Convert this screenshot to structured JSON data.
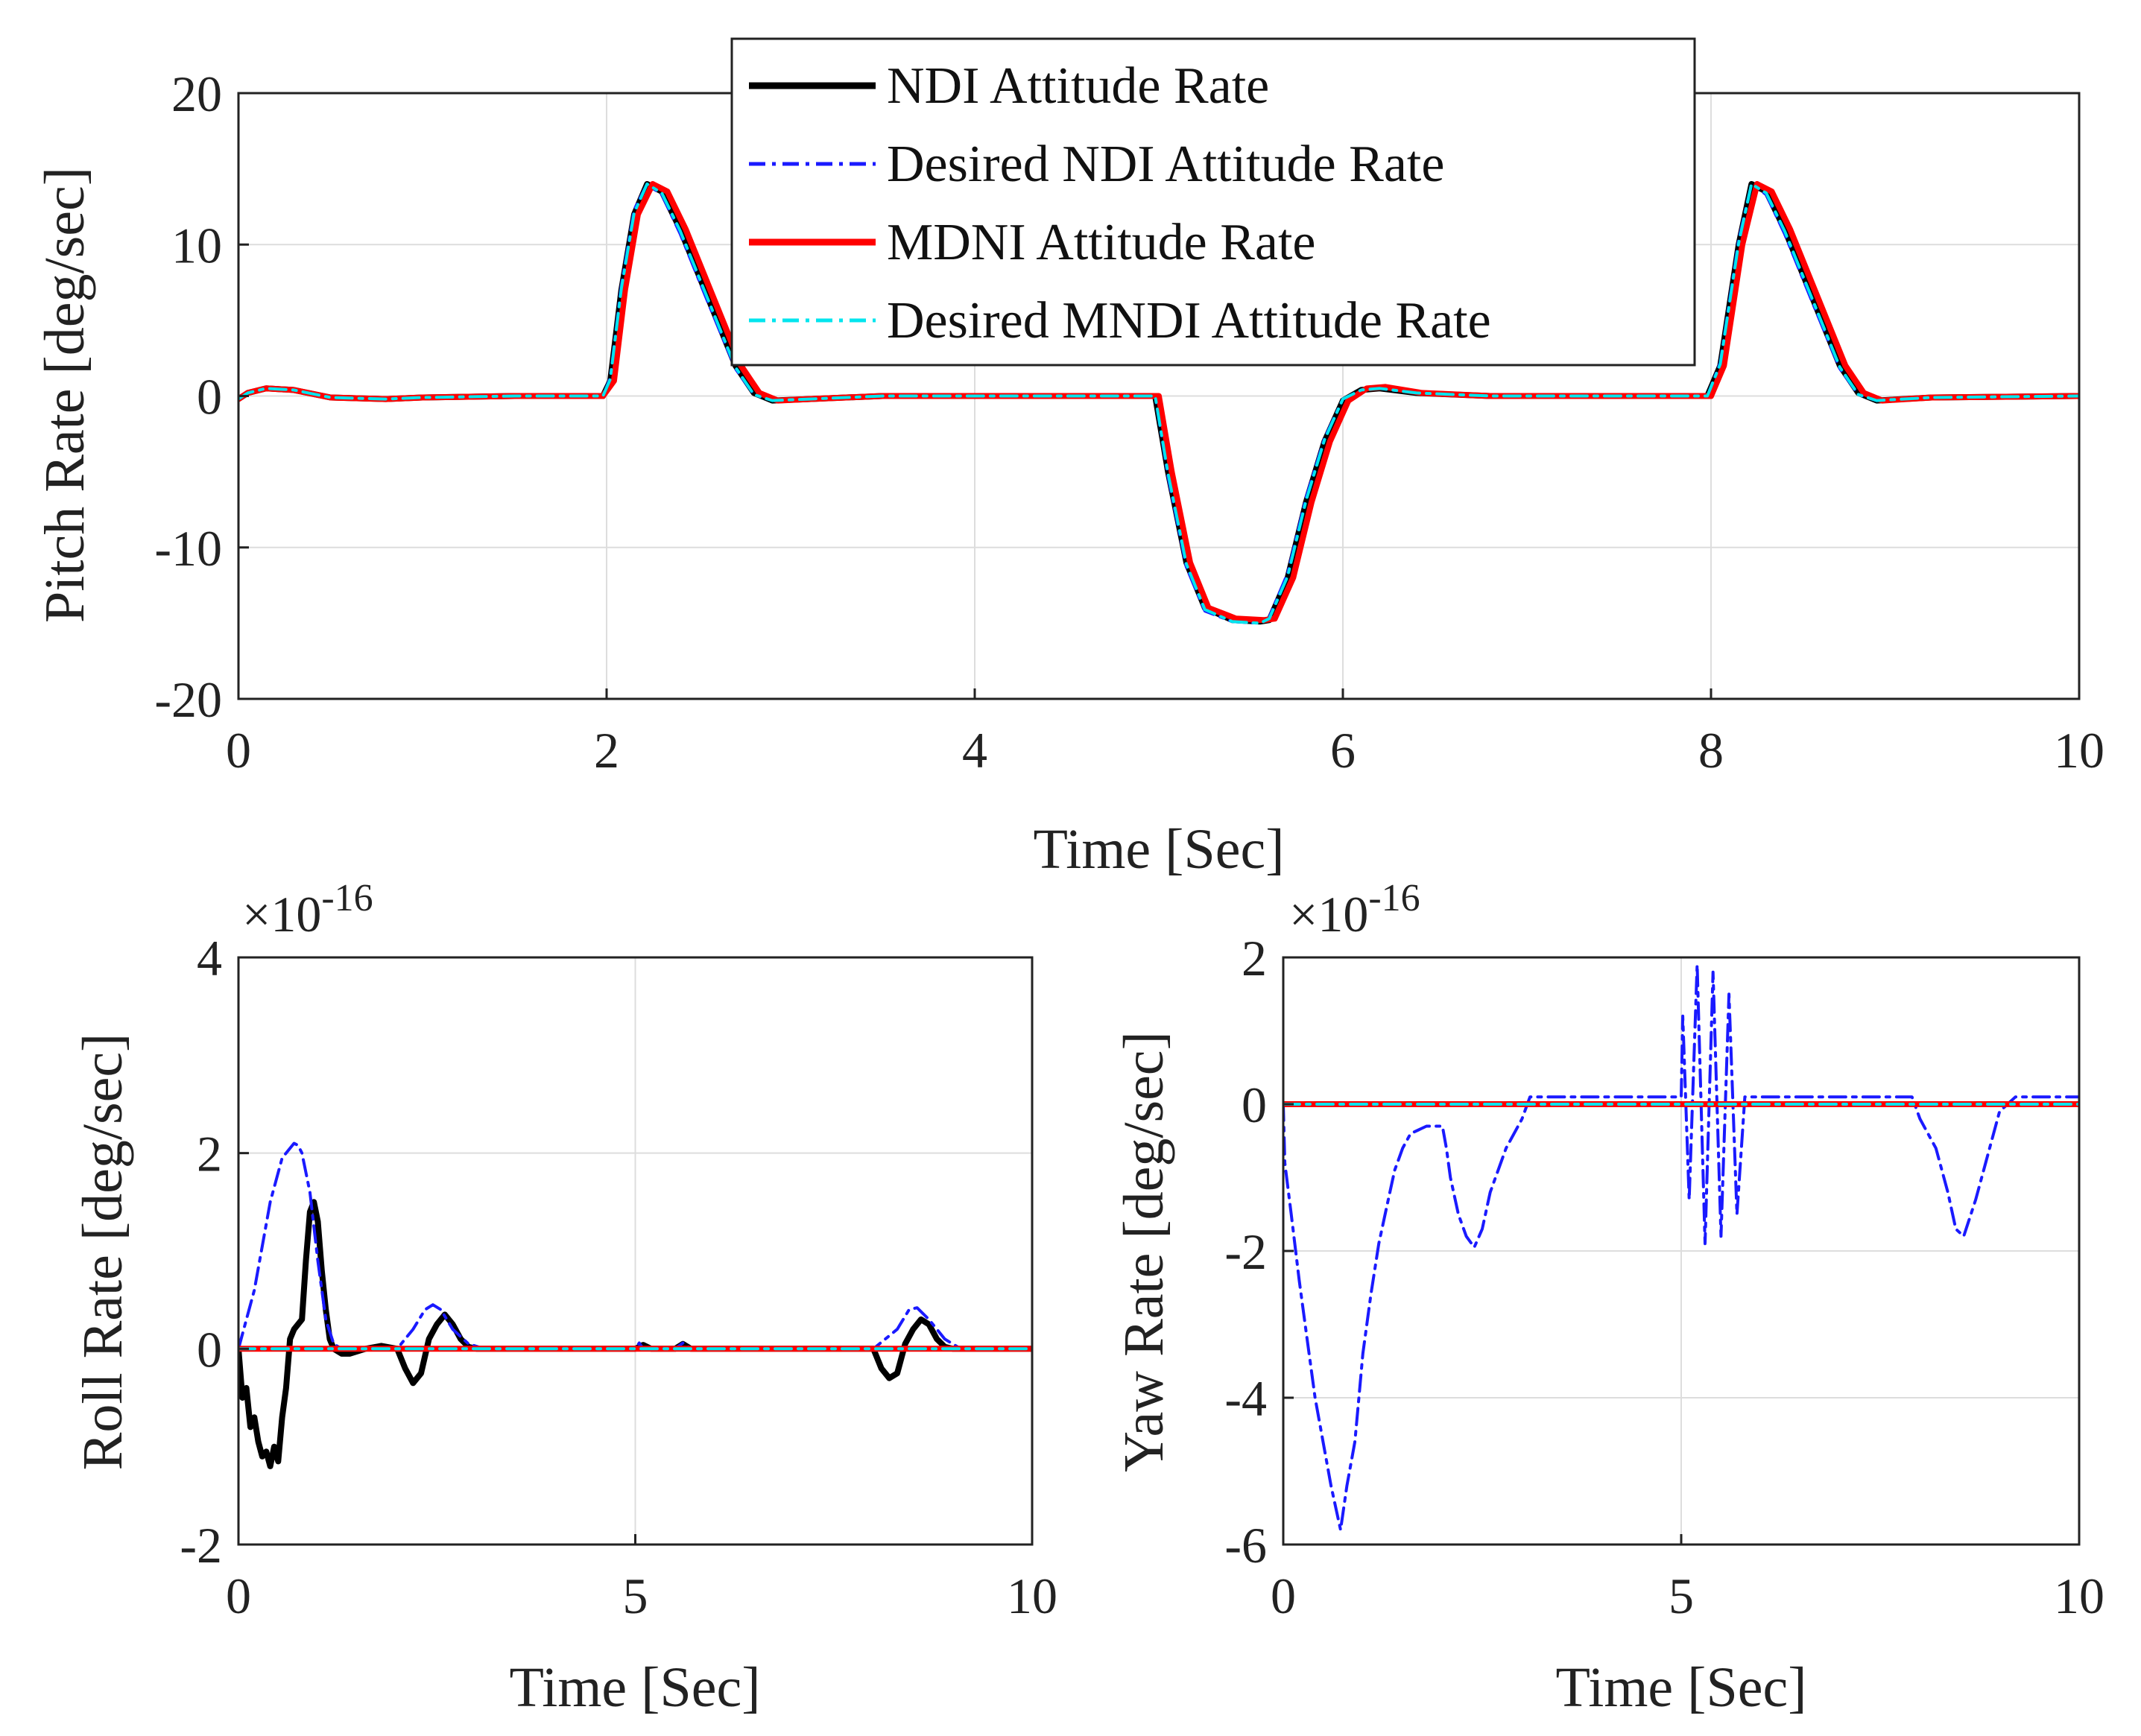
{
  "chart_data": [
    {
      "id": "pitch",
      "type": "line",
      "xlabel": "Time  [Sec]",
      "ylabel": "Pitch Rate [deg/sec]",
      "xlim": [
        0,
        10
      ],
      "ylim": [
        -20,
        20
      ],
      "xticks": [
        0,
        2,
        4,
        6,
        8,
        10
      ],
      "yticks": [
        -20,
        -10,
        0,
        10,
        20
      ],
      "grid": true,
      "legend_position": "top-center",
      "series": [
        {
          "name": "NDI Attitude Rate",
          "color": "#000000",
          "style": "solid",
          "x": [
            0,
            0.05,
            0.15,
            0.3,
            0.5,
            0.8,
            1.0,
            1.5,
            1.98,
            2.02,
            2.08,
            2.15,
            2.22,
            2.3,
            2.4,
            2.55,
            2.7,
            2.8,
            2.9,
            3.1,
            3.5,
            4.0,
            4.5,
            4.98,
            5.05,
            5.15,
            5.25,
            5.4,
            5.55,
            5.6,
            5.7,
            5.8,
            5.9,
            6.0,
            6.1,
            6.2,
            6.4,
            6.8,
            7.5,
            7.98,
            8.05,
            8.15,
            8.22,
            8.3,
            8.4,
            8.55,
            8.7,
            8.8,
            8.9,
            9.2,
            10
          ],
          "y": [
            -0.2,
            0.2,
            0.5,
            0.4,
            -0.1,
            -0.2,
            -0.1,
            0,
            0,
            1.0,
            7.0,
            12.0,
            14.0,
            13.5,
            11.0,
            6.5,
            2.0,
            0.2,
            -0.3,
            -0.2,
            0,
            0,
            0,
            0,
            -5.0,
            -11.0,
            -14.0,
            -14.8,
            -14.9,
            -14.8,
            -12.0,
            -7.0,
            -3.0,
            -0.3,
            0.4,
            0.5,
            0.2,
            0,
            0,
            0,
            2.0,
            10.0,
            14.0,
            13.5,
            11.0,
            6.5,
            2.0,
            0.2,
            -0.3,
            -0.1,
            0
          ]
        },
        {
          "name": "Desired NDI Attitude Rate",
          "color": "#1a1aff",
          "style": "dashdot",
          "x": [
            0,
            0.05,
            0.15,
            0.3,
            0.5,
            0.8,
            1.0,
            1.5,
            1.98,
            2.02,
            2.08,
            2.15,
            2.22,
            2.3,
            2.4,
            2.55,
            2.7,
            2.8,
            2.9,
            3.1,
            3.5,
            4.0,
            4.5,
            4.98,
            5.05,
            5.15,
            5.25,
            5.4,
            5.55,
            5.6,
            5.7,
            5.8,
            5.9,
            6.0,
            6.1,
            6.2,
            6.4,
            6.8,
            7.5,
            7.98,
            8.05,
            8.15,
            8.22,
            8.3,
            8.4,
            8.55,
            8.7,
            8.8,
            8.9,
            9.2,
            10
          ],
          "y": [
            -0.2,
            0.2,
            0.5,
            0.4,
            -0.1,
            -0.2,
            -0.1,
            0,
            0,
            1.2,
            7.3,
            12.3,
            14.0,
            13.3,
            10.7,
            6.2,
            1.8,
            0.1,
            -0.3,
            -0.2,
            0,
            0,
            0,
            0,
            -5.3,
            -11.3,
            -14.2,
            -14.9,
            -15.0,
            -14.6,
            -11.7,
            -6.7,
            -2.8,
            -0.2,
            0.4,
            0.5,
            0.2,
            0,
            0,
            0,
            2.2,
            10.3,
            14.0,
            13.3,
            10.7,
            6.2,
            1.8,
            0.1,
            -0.3,
            -0.1,
            0
          ]
        },
        {
          "name": "MDNI Attitude Rate",
          "color": "#ff0000",
          "style": "solid",
          "x": [
            0,
            0.05,
            0.15,
            0.3,
            0.5,
            0.8,
            1.0,
            1.5,
            1.98,
            2.04,
            2.1,
            2.17,
            2.25,
            2.33,
            2.43,
            2.58,
            2.73,
            2.83,
            2.93,
            3.1,
            3.5,
            4.0,
            4.5,
            5.0,
            5.07,
            5.17,
            5.27,
            5.42,
            5.57,
            5.63,
            5.73,
            5.83,
            5.93,
            6.03,
            6.13,
            6.23,
            6.43,
            6.8,
            7.5,
            8.0,
            8.07,
            8.17,
            8.25,
            8.33,
            8.43,
            8.58,
            8.73,
            8.83,
            8.93,
            9.2,
            10
          ],
          "y": [
            -0.2,
            0.2,
            0.5,
            0.4,
            -0.1,
            -0.2,
            -0.1,
            0,
            0,
            1.0,
            7.0,
            12.0,
            14.0,
            13.5,
            11.0,
            6.5,
            2.0,
            0.2,
            -0.3,
            -0.2,
            0,
            0,
            0,
            0,
            -5.0,
            -11.0,
            -14.0,
            -14.7,
            -14.8,
            -14.7,
            -12.0,
            -7.0,
            -3.0,
            -0.3,
            0.5,
            0.6,
            0.2,
            0,
            0,
            0,
            2.0,
            10.0,
            14.0,
            13.5,
            11.0,
            6.5,
            2.0,
            0.2,
            -0.3,
            -0.1,
            0
          ]
        },
        {
          "name": "Desired MNDI Attitude Rate",
          "color": "#00e5ee",
          "style": "dashdot",
          "x": [
            0,
            0.05,
            0.15,
            0.3,
            0.5,
            0.8,
            1.0,
            1.5,
            1.98,
            2.02,
            2.08,
            2.15,
            2.22,
            2.3,
            2.4,
            2.55,
            2.7,
            2.8,
            2.9,
            3.1,
            3.5,
            4.0,
            4.5,
            4.98,
            5.05,
            5.15,
            5.25,
            5.4,
            5.55,
            5.6,
            5.7,
            5.8,
            5.9,
            6.0,
            6.1,
            6.2,
            6.4,
            6.8,
            7.5,
            7.98,
            8.05,
            8.15,
            8.22,
            8.3,
            8.4,
            8.55,
            8.7,
            8.8,
            8.9,
            9.2,
            10
          ],
          "y": [
            -0.2,
            0.2,
            0.5,
            0.4,
            -0.1,
            -0.2,
            -0.1,
            0,
            0,
            1.1,
            7.1,
            12.1,
            14.0,
            13.4,
            10.9,
            6.4,
            1.9,
            0.1,
            -0.3,
            -0.2,
            0,
            0,
            0,
            0,
            -5.1,
            -11.1,
            -14.1,
            -14.9,
            -15.0,
            -14.7,
            -11.9,
            -6.9,
            -2.9,
            -0.2,
            0.4,
            0.5,
            0.2,
            0,
            0,
            0,
            2.1,
            10.1,
            14.0,
            13.4,
            10.9,
            6.4,
            1.9,
            0.1,
            -0.3,
            -0.1,
            0
          ]
        }
      ]
    },
    {
      "id": "roll",
      "type": "line",
      "xlabel": "Time  [Sec]",
      "ylabel": "Roll Rate [deg/sec]",
      "exponent_label": "×10",
      "exponent_power": "-16",
      "xlim": [
        0,
        10
      ],
      "ylim": [
        -2,
        4
      ],
      "xticks": [
        0,
        5,
        10
      ],
      "yticks": [
        -2,
        0,
        2,
        4
      ],
      "grid": true,
      "series": [
        {
          "name": "NDI Attitude Rate",
          "color": "#000000",
          "style": "solid",
          "x": [
            0,
            0.05,
            0.1,
            0.15,
            0.2,
            0.25,
            0.3,
            0.35,
            0.4,
            0.45,
            0.5,
            0.55,
            0.6,
            0.65,
            0.7,
            0.75,
            0.8,
            0.85,
            0.9,
            0.95,
            1.0,
            1.05,
            1.1,
            1.15,
            1.2,
            1.3,
            1.4,
            1.6,
            1.8,
            2.0,
            2.1,
            2.2,
            2.3,
            2.4,
            2.5,
            2.6,
            2.7,
            2.8,
            2.9,
            3.0,
            3.2,
            3.5,
            4.5,
            5.0,
            5.1,
            5.2,
            5.5,
            5.6,
            5.7,
            6.5,
            8.0,
            8.1,
            8.2,
            8.3,
            8.4,
            8.5,
            8.6,
            8.7,
            8.8,
            8.9,
            9.0,
            9.2,
            10
          ],
          "y": [
            0,
            -0.5,
            -0.4,
            -0.8,
            -0.7,
            -0.95,
            -1.1,
            -1.05,
            -1.2,
            -1.0,
            -1.15,
            -0.7,
            -0.4,
            0.1,
            0.2,
            0.25,
            0.3,
            0.9,
            1.4,
            1.5,
            1.3,
            0.8,
            0.4,
            0.1,
            0,
            -0.05,
            -0.05,
            0,
            0.03,
            0,
            -0.2,
            -0.35,
            -0.25,
            0.1,
            0.25,
            0.35,
            0.25,
            0.1,
            0.02,
            0,
            0,
            0,
            0,
            0,
            0.04,
            0,
            0,
            0.05,
            0,
            0,
            0,
            -0.2,
            -0.3,
            -0.25,
            0.05,
            0.2,
            0.3,
            0.25,
            0.1,
            0.02,
            0,
            0,
            0
          ]
        },
        {
          "name": "Desired NDI Attitude Rate",
          "color": "#1a1aff",
          "style": "dashdot",
          "x": [
            0,
            0.2,
            0.4,
            0.55,
            0.65,
            0.7,
            0.75,
            0.8,
            0.9,
            1.0,
            1.1,
            1.2,
            1.3,
            1.5,
            2.0,
            2.2,
            2.35,
            2.45,
            2.55,
            2.7,
            2.9,
            3.1,
            5.0,
            5.05,
            5.1,
            5.5,
            5.6,
            5.7,
            6.5,
            8.0,
            8.3,
            8.45,
            8.55,
            8.7,
            8.9,
            9.1,
            10
          ],
          "y": [
            0,
            0.6,
            1.5,
            1.95,
            2.05,
            2.1,
            2.08,
            2.0,
            1.6,
            0.9,
            0.3,
            0.05,
            0,
            0,
            0,
            0.2,
            0.4,
            0.45,
            0.4,
            0.2,
            0.05,
            0,
            0,
            0.06,
            0,
            0,
            0.06,
            0,
            0,
            0,
            0.2,
            0.4,
            0.42,
            0.3,
            0.1,
            0,
            0
          ]
        },
        {
          "name": "MDNI Attitude Rate",
          "color": "#ff0000",
          "style": "solid",
          "x": [
            0,
            10
          ],
          "y": [
            0,
            0
          ]
        },
        {
          "name": "Desired MNDI Attitude Rate",
          "color": "#00e5ee",
          "style": "dashdot",
          "x": [
            0,
            10
          ],
          "y": [
            0,
            0
          ]
        }
      ]
    },
    {
      "id": "yaw",
      "type": "line",
      "xlabel": "Time  [Sec]",
      "ylabel": "Yaw Rate [deg/sec]",
      "exponent_label": "×10",
      "exponent_power": "-16",
      "xlim": [
        0,
        10
      ],
      "ylim": [
        -6,
        2
      ],
      "xticks": [
        0,
        5,
        10
      ],
      "yticks": [
        -6,
        -4,
        -2,
        0,
        2
      ],
      "grid": true,
      "series": [
        {
          "name": "NDI Attitude Rate",
          "color": "#000000",
          "style": "solid",
          "x": [
            0,
            10
          ],
          "y": [
            0,
            0
          ]
        },
        {
          "name": "Desired NDI Attitude Rate",
          "color": "#1a1aff",
          "style": "dashdot",
          "x": [
            0,
            0.02,
            0.1,
            0.2,
            0.3,
            0.4,
            0.5,
            0.6,
            0.7,
            0.72,
            0.8,
            0.9,
            0.95,
            1.0,
            1.1,
            1.2,
            1.3,
            1.4,
            1.5,
            1.6,
            1.7,
            1.8,
            1.9,
            2.0,
            2.05,
            2.1,
            2.2,
            2.3,
            2.4,
            2.5,
            2.6,
            2.8,
            3.0,
            3.1,
            3.5,
            4.0,
            4.5,
            5.0,
            5.02,
            5.1,
            5.2,
            5.3,
            5.4,
            5.5,
            5.6,
            5.7,
            5.8,
            6.0,
            6.5,
            7.0,
            7.5,
            7.9,
            8.0,
            8.2,
            8.35,
            8.45,
            8.55,
            8.7,
            8.9,
            9.0,
            9.2,
            9.5,
            10
          ],
          "y": [
            0,
            -0.8,
            -1.5,
            -2.4,
            -3.2,
            -4.0,
            -4.6,
            -5.2,
            -5.7,
            -5.8,
            -5.2,
            -4.6,
            -4.0,
            -3.4,
            -2.6,
            -1.9,
            -1.4,
            -0.9,
            -0.6,
            -0.4,
            -0.35,
            -0.3,
            -0.3,
            -0.3,
            -0.6,
            -1.0,
            -1.5,
            -1.8,
            -1.95,
            -1.7,
            -1.2,
            -0.6,
            -0.2,
            0.1,
            0.1,
            0.1,
            0.1,
            0.1,
            1.2,
            -1.3,
            1.9,
            -1.9,
            1.8,
            -1.8,
            1.5,
            -1.5,
            0.1,
            0.1,
            0.1,
            0.1,
            0.1,
            0.1,
            -0.2,
            -0.6,
            -1.2,
            -1.7,
            -1.8,
            -1.3,
            -0.5,
            -0.1,
            0.1,
            0.1,
            0.1
          ]
        },
        {
          "name": "MDNI Attitude Rate",
          "color": "#ff0000",
          "style": "solid",
          "x": [
            0,
            10
          ],
          "y": [
            0,
            0
          ]
        },
        {
          "name": "Desired MNDI Attitude Rate",
          "color": "#00e5ee",
          "style": "dashdot",
          "x": [
            0,
            10
          ],
          "y": [
            0,
            0
          ]
        }
      ]
    }
  ]
}
